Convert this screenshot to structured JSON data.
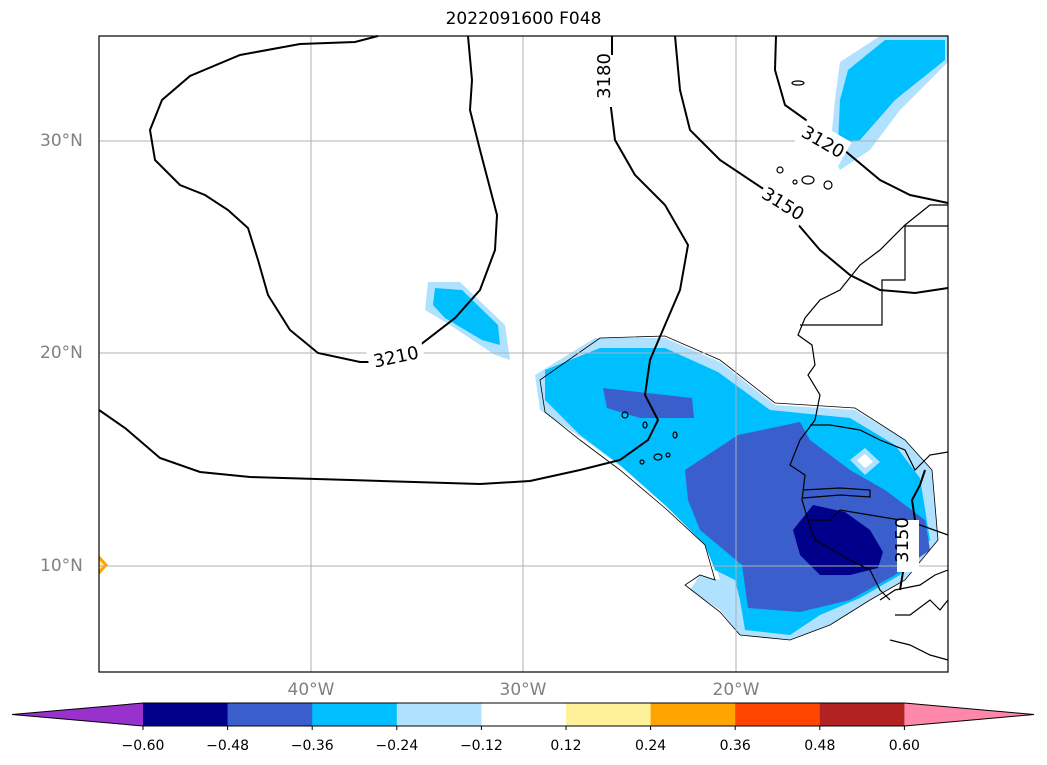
{
  "title": "2022091600 F048",
  "lat_labels": [
    "30°N",
    "20°N",
    "10°N"
  ],
  "lon_labels": [
    "40°W",
    "30°W",
    "20°W"
  ],
  "contour_labels": [
    "3120",
    "3150",
    "3180",
    "3210",
    "3150"
  ],
  "colorbar": {
    "ticks": [
      "−0.60",
      "−0.48",
      "−0.36",
      "−0.24",
      "−0.12",
      "0.12",
      "0.24",
      "0.36",
      "0.48",
      "0.60"
    ],
    "colors": [
      "#9932cc",
      "#00008b",
      "#3a5fcd",
      "#00bfff",
      "#b0e2ff",
      "#ffffff",
      "#fff09a",
      "#ffa500",
      "#ff4500",
      "#b22222",
      "#ff88aa"
    ]
  }
}
